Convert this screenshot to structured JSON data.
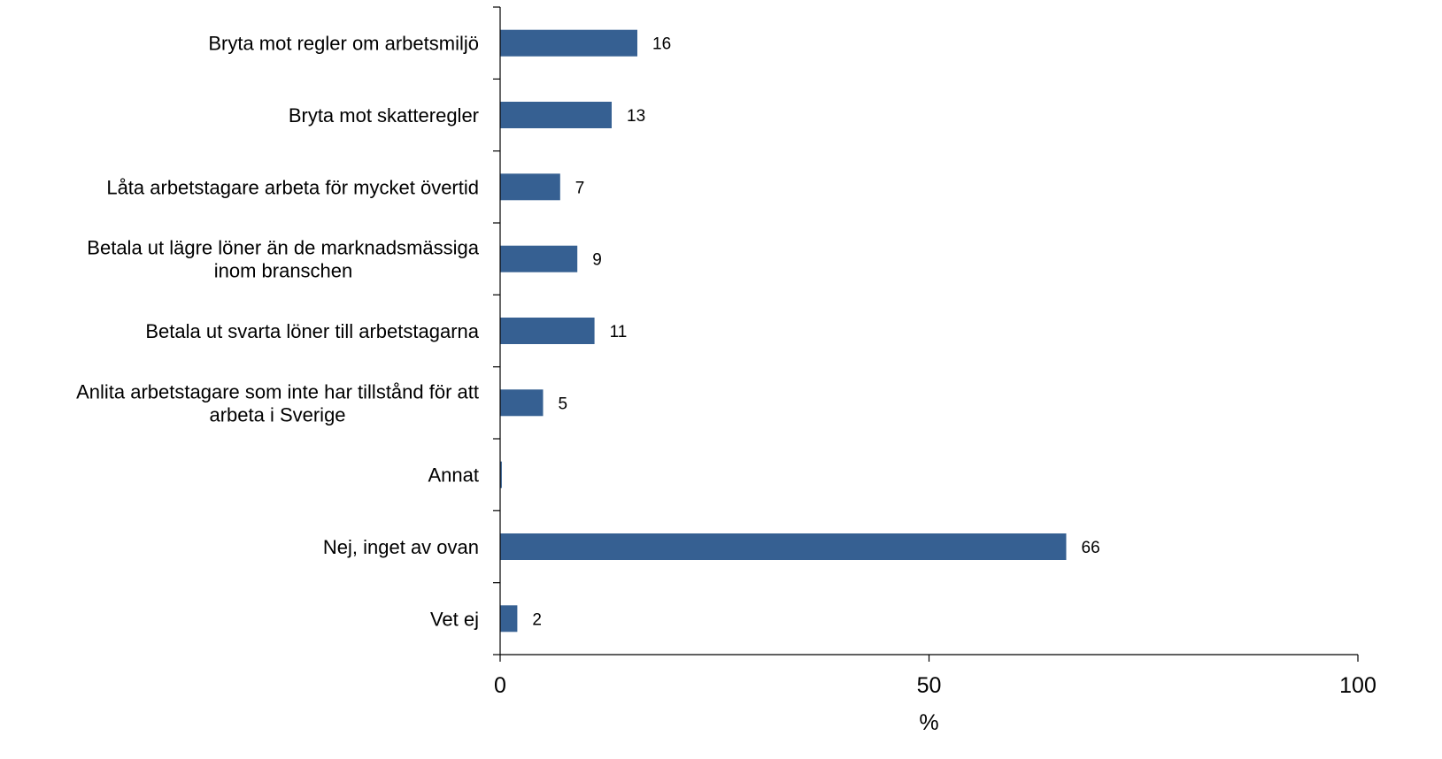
{
  "chart_data": {
    "type": "bar",
    "orientation": "horizontal",
    "categories": [
      [
        "Bryta mot regler om arbetsmiljö"
      ],
      [
        "Bryta mot skatteregler"
      ],
      [
        "Låta arbetstagare arbeta för mycket övertid"
      ],
      [
        "Betala ut lägre löner än de marknadsmässiga",
        "inom branschen"
      ],
      [
        "Betala ut svarta löner till arbetstagarna"
      ],
      [
        "Anlita arbetstagare som inte har tillstånd för att",
        "arbeta i Sverige"
      ],
      [
        "Annat"
      ],
      [
        "Nej, inget av ovan"
      ],
      [
        "Vet ej"
      ]
    ],
    "values": [
      16,
      13,
      7,
      9,
      11,
      5,
      0.2,
      66,
      2
    ],
    "data_labels": [
      "16",
      "13",
      "7",
      "9",
      "11",
      "5",
      "",
      "66",
      "2"
    ],
    "xlabel": "%",
    "xlim": [
      0,
      100
    ],
    "xticks": [
      "0",
      "50",
      "100"
    ],
    "bar_color": "#366092",
    "grid": false,
    "legend": "none"
  }
}
